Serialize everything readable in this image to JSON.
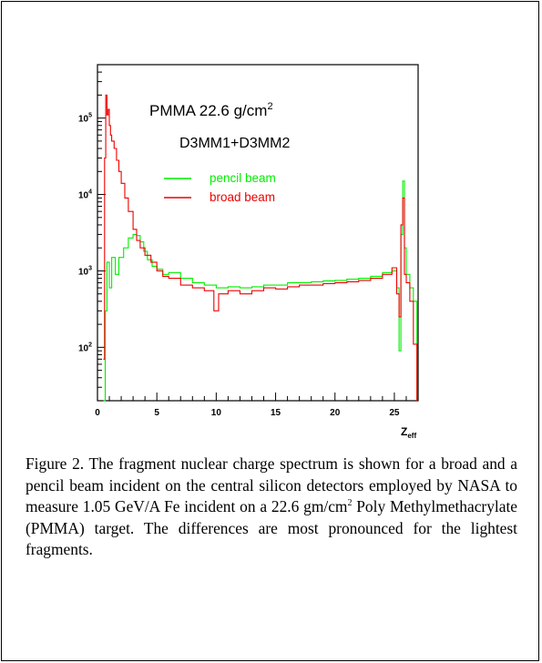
{
  "chart_data": {
    "type": "line",
    "title": "PMMA 22.6 g/cm",
    "title_superscript": "2",
    "subtitle": "D3MM1+D3MM2",
    "xlabel": "Z",
    "xlabel_subscript": "eff",
    "ylabel": "",
    "y_scale": "log",
    "xlim": [
      0,
      27
    ],
    "ylim": [
      20,
      500000
    ],
    "x_ticks": [
      0,
      5,
      10,
      15,
      20,
      25
    ],
    "y_ticks": [
      {
        "value": 100,
        "exp": "2"
      },
      {
        "value": 1000,
        "exp": "3"
      },
      {
        "value": 10000,
        "exp": "4"
      },
      {
        "value": 100000,
        "exp": "5"
      }
    ],
    "legend_position": "upper-center",
    "series": [
      {
        "name": "pencil beam",
        "color": "#00ee00",
        "x": [
          0.5,
          0.65,
          0.8,
          1.0,
          1.2,
          1.5,
          1.8,
          2.2,
          2.6,
          3.0,
          3.3,
          3.6,
          3.9,
          4.2,
          4.6,
          5.0,
          5.5,
          6.0,
          7.0,
          8.0,
          9.0,
          10.0,
          11.0,
          12.0,
          13.0,
          14.0,
          15.0,
          16.0,
          17.0,
          18.0,
          19.0,
          20.0,
          21.0,
          22.0,
          23.0,
          24.0,
          24.8,
          25.2,
          25.4,
          25.55,
          25.7,
          25.85,
          26.0,
          26.3,
          26.6,
          26.9
        ],
        "y": [
          20,
          300,
          1300,
          600,
          1500,
          900,
          1500,
          2000,
          2700,
          3000,
          2900,
          2400,
          1800,
          1400,
          1150,
          1050,
          900,
          950,
          800,
          700,
          650,
          600,
          620,
          600,
          620,
          650,
          650,
          700,
          700,
          720,
          740,
          750,
          780,
          800,
          850,
          950,
          1000,
          600,
          90,
          3000,
          15000,
          2000,
          900,
          600,
          400,
          20
        ]
      },
      {
        "name": "broad beam",
        "color": "#ee0000",
        "x": [
          0.5,
          0.6,
          0.7,
          0.8,
          0.9,
          1.0,
          1.1,
          1.2,
          1.4,
          1.6,
          1.8,
          2.0,
          2.3,
          2.6,
          3.0,
          3.3,
          3.6,
          4.0,
          4.5,
          5.0,
          5.5,
          6.0,
          7.0,
          8.0,
          9.0,
          9.8,
          10.2,
          11.0,
          12.0,
          13.0,
          14.0,
          15.0,
          16.0,
          17.0,
          18.0,
          19.0,
          20.0,
          21.0,
          22.0,
          23.0,
          24.0,
          24.8,
          25.2,
          25.4,
          25.55,
          25.7,
          25.85,
          26.0,
          26.3,
          26.6,
          26.9
        ],
        "y": [
          70,
          30000,
          200000,
          110000,
          130000,
          80000,
          60000,
          50000,
          40000,
          28000,
          20000,
          14000,
          9000,
          6000,
          3500,
          2500,
          2000,
          1600,
          1300,
          1000,
          850,
          800,
          650,
          600,
          550,
          300,
          500,
          550,
          500,
          550,
          600,
          580,
          620,
          650,
          650,
          680,
          700,
          720,
          750,
          800,
          900,
          1100,
          500,
          250,
          4000,
          9000,
          900,
          700,
          400,
          110,
          20
        ]
      }
    ]
  },
  "caption": {
    "part1": "Figure 2.   The fragment nuclear charge spectrum is shown for a broad and a pencil beam incident on the central silicon detectors employed by NASA to measure 1.05 GeV/A Fe incident on a 22.6 gm/cm",
    "sup": "2",
    "part2": " Poly Methylmethacrylate (PMMA) target.   The differences are most pronounced for the lightest fragments."
  }
}
